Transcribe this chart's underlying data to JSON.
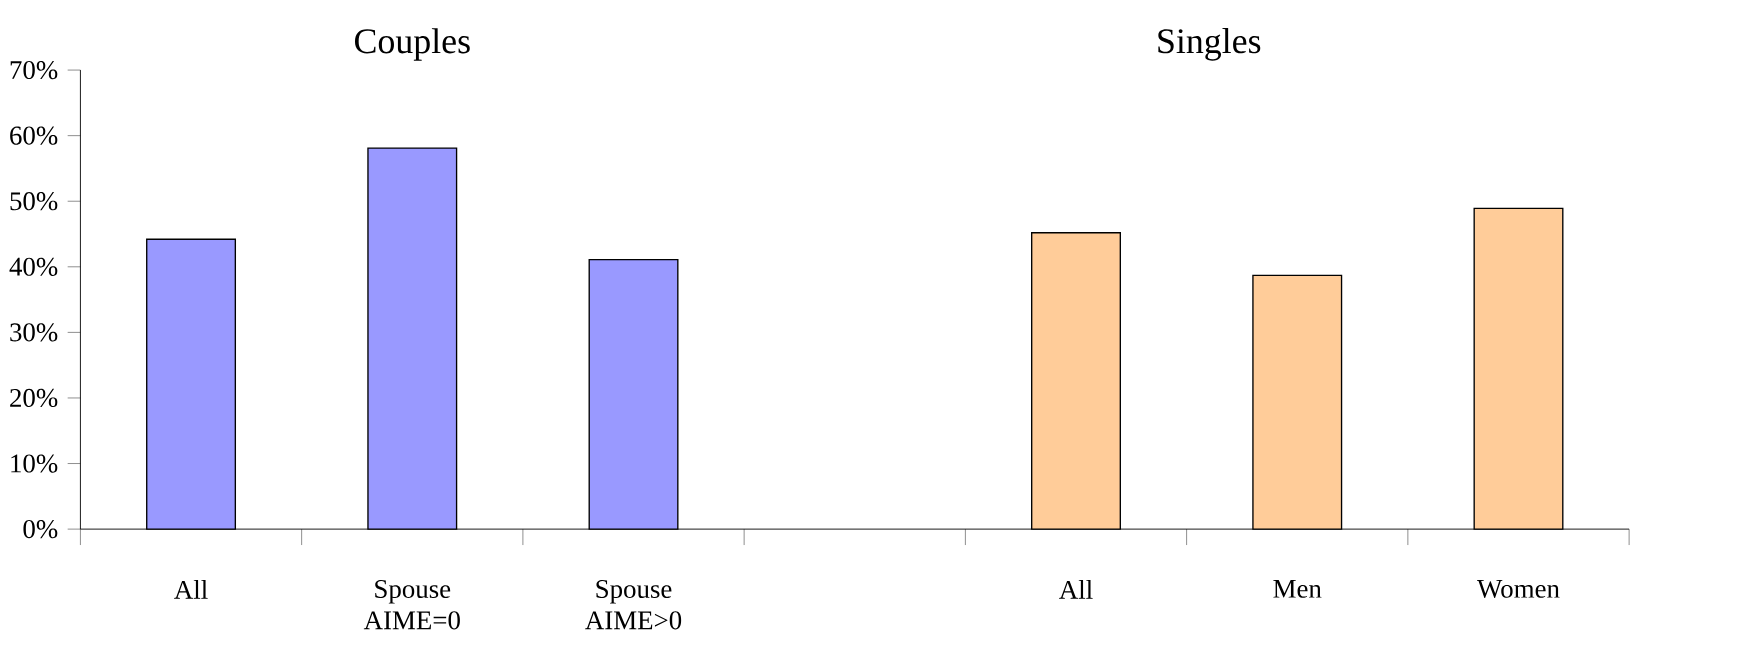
{
  "chart_data": {
    "type": "bar",
    "categories": [
      "All",
      "Spouse AIME=0",
      "Spouse AIME>0",
      null,
      "All",
      "Men",
      "Women"
    ],
    "values": [
      44.2,
      58.1,
      41.1,
      null,
      45.2,
      38.7,
      48.9
    ],
    "colors": [
      "#9999ff",
      "#9999ff",
      "#9999ff",
      "#ffffff",
      "#ffcc99",
      "#ffcc99",
      "#ffcc99"
    ],
    "ylim": [
      0,
      70
    ],
    "yticks": [
      {
        "value": 0,
        "label": "0%"
      },
      {
        "value": 10,
        "label": "10%"
      },
      {
        "value": 20,
        "label": "20%"
      },
      {
        "value": 30,
        "label": "30%"
      },
      {
        "value": 40,
        "label": "40%"
      },
      {
        "value": 50,
        "label": "50%"
      },
      {
        "value": 60,
        "label": "60%"
      },
      {
        "value": 70,
        "label": "70%"
      }
    ],
    "annotations": [
      "Couples",
      "Singles"
    ]
  }
}
